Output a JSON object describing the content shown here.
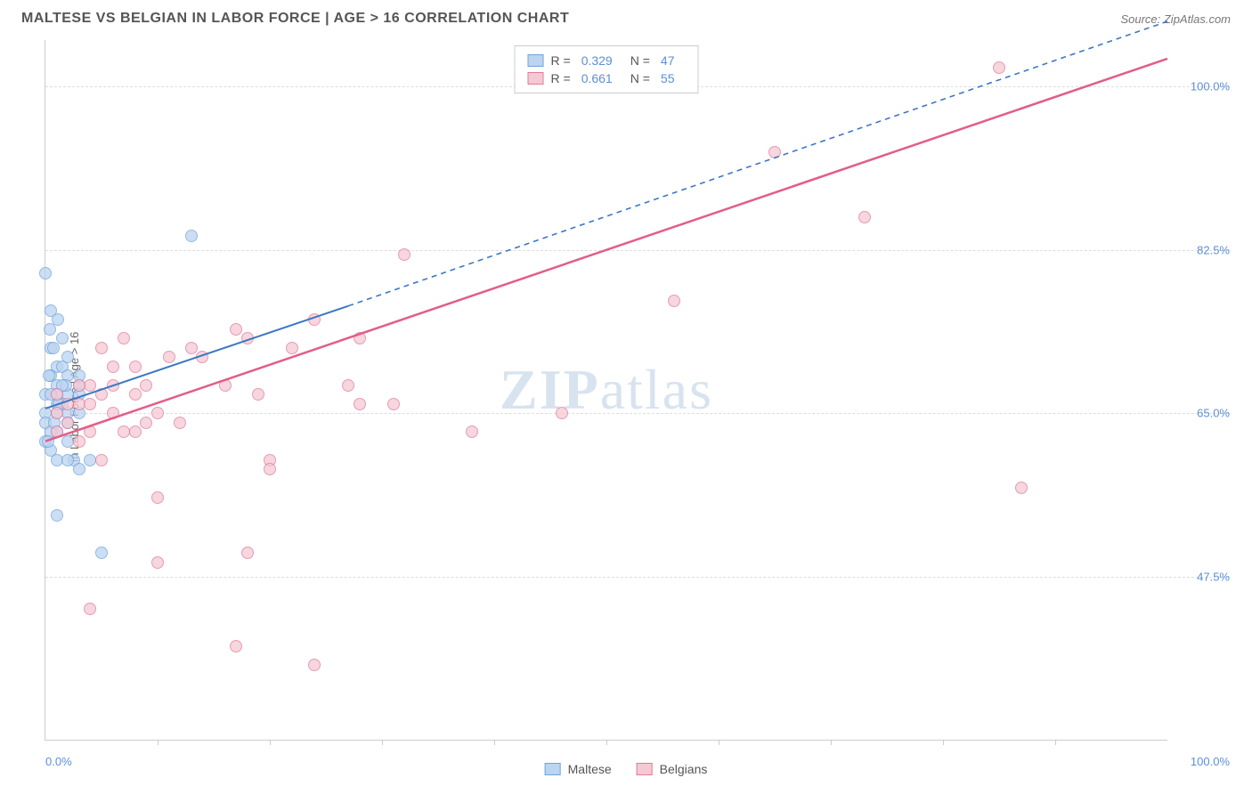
{
  "title": "MALTESE VS BELGIAN IN LABOR FORCE | AGE > 16 CORRELATION CHART",
  "source": "Source: ZipAtlas.com",
  "ylabel": "In Labor Force | Age > 16",
  "watermark_a": "ZIP",
  "watermark_b": "atlas",
  "chart": {
    "type": "scatter",
    "xlim": [
      0,
      100
    ],
    "ylim": [
      30,
      105
    ],
    "x_axis_label_left": "0.0%",
    "x_axis_label_right": "100.0%",
    "y_ticks": [
      {
        "v": 47.5,
        "label": "47.5%"
      },
      {
        "v": 65.0,
        "label": "65.0%"
      },
      {
        "v": 82.5,
        "label": "82.5%"
      },
      {
        "v": 100.0,
        "label": "100.0%"
      }
    ],
    "x_tick_positions": [
      10,
      20,
      30,
      40,
      50,
      60,
      70,
      80,
      90
    ],
    "background_color": "#ffffff",
    "grid_color": "#dddddd",
    "axis_label_color": "#5b8fd6",
    "point_radius": 7,
    "series": [
      {
        "name": "Maltese",
        "fill": "#bcd4f0",
        "stroke": "#6fa3dc",
        "r_value": "0.329",
        "n_value": "47",
        "regression": {
          "solid_from": [
            0,
            65.5
          ],
          "solid_to": [
            27,
            76.5
          ],
          "dash_to": [
            100,
            107
          ],
          "line_color": "#3b78c4",
          "line_width": 2
        },
        "points": [
          [
            0,
            80
          ],
          [
            0.5,
            76
          ],
          [
            0.5,
            72
          ],
          [
            1,
            70
          ],
          [
            1,
            68
          ],
          [
            3,
            68
          ],
          [
            1,
            67
          ],
          [
            2,
            67
          ],
          [
            0,
            67
          ],
          [
            1.5,
            70
          ],
          [
            2,
            71
          ],
          [
            1,
            65
          ],
          [
            2,
            65
          ],
          [
            0,
            65
          ],
          [
            3,
            65
          ],
          [
            1,
            63
          ],
          [
            2,
            62
          ],
          [
            1,
            60
          ],
          [
            0,
            62
          ],
          [
            0.5,
            61
          ],
          [
            2.5,
            60
          ],
          [
            1.5,
            73
          ],
          [
            0.5,
            67
          ],
          [
            0.5,
            69
          ],
          [
            1.5,
            66
          ],
          [
            0,
            64
          ],
          [
            3,
            69
          ],
          [
            2,
            69
          ],
          [
            1,
            54
          ],
          [
            5,
            50
          ],
          [
            3,
            59
          ],
          [
            4,
            60
          ],
          [
            13,
            84
          ],
          [
            1,
            66
          ],
          [
            2,
            64
          ],
          [
            2,
            60
          ],
          [
            0.5,
            63
          ],
          [
            0.8,
            64
          ],
          [
            1.2,
            66
          ],
          [
            1.8,
            68
          ],
          [
            0.3,
            69
          ],
          [
            0.7,
            72
          ],
          [
            1.1,
            75
          ],
          [
            0.2,
            62
          ],
          [
            0.4,
            74
          ],
          [
            3,
            67
          ],
          [
            1.5,
            68
          ]
        ]
      },
      {
        "name": "Belgians",
        "fill": "#f5c9d3",
        "stroke": "#e07a9b",
        "r_value": "0.661",
        "n_value": "55",
        "regression": {
          "solid_from": [
            0,
            62
          ],
          "solid_to": [
            100,
            103
          ],
          "dash_to": null,
          "line_color": "#e35d87",
          "line_width": 2.5
        },
        "points": [
          [
            85,
            102
          ],
          [
            65,
            93
          ],
          [
            73,
            86
          ],
          [
            56,
            77
          ],
          [
            32,
            82
          ],
          [
            46,
            65
          ],
          [
            38,
            63
          ],
          [
            28,
            66
          ],
          [
            27,
            68
          ],
          [
            31,
            66
          ],
          [
            24,
            75
          ],
          [
            22,
            72
          ],
          [
            18,
            73
          ],
          [
            16,
            68
          ],
          [
            20,
            60
          ],
          [
            20,
            59
          ],
          [
            18,
            50
          ],
          [
            17,
            40
          ],
          [
            24,
            38
          ],
          [
            4,
            44
          ],
          [
            10,
            56
          ],
          [
            10,
            49
          ],
          [
            13,
            72
          ],
          [
            14,
            71
          ],
          [
            8,
            70
          ],
          [
            8,
            67
          ],
          [
            9,
            64
          ],
          [
            10,
            65
          ],
          [
            6,
            65
          ],
          [
            7,
            63
          ],
          [
            9,
            68
          ],
          [
            5,
            60
          ],
          [
            5,
            67
          ],
          [
            6,
            68
          ],
          [
            3,
            66
          ],
          [
            3,
            62
          ],
          [
            4,
            66
          ],
          [
            4,
            68
          ],
          [
            2,
            64
          ],
          [
            2,
            66
          ],
          [
            1,
            65
          ],
          [
            1,
            67
          ],
          [
            1,
            63
          ],
          [
            4,
            63
          ],
          [
            8,
            63
          ],
          [
            87,
            57
          ],
          [
            11,
            71
          ],
          [
            17,
            74
          ],
          [
            19,
            67
          ],
          [
            28,
            73
          ],
          [
            6,
            70
          ],
          [
            3,
            68
          ],
          [
            5,
            72
          ],
          [
            7,
            73
          ],
          [
            12,
            64
          ]
        ]
      }
    ]
  },
  "legend_bottom": [
    {
      "label": "Maltese",
      "fill": "#bcd4f0",
      "stroke": "#6fa3dc"
    },
    {
      "label": "Belgians",
      "fill": "#f5c9d3",
      "stroke": "#e07a9b"
    }
  ]
}
